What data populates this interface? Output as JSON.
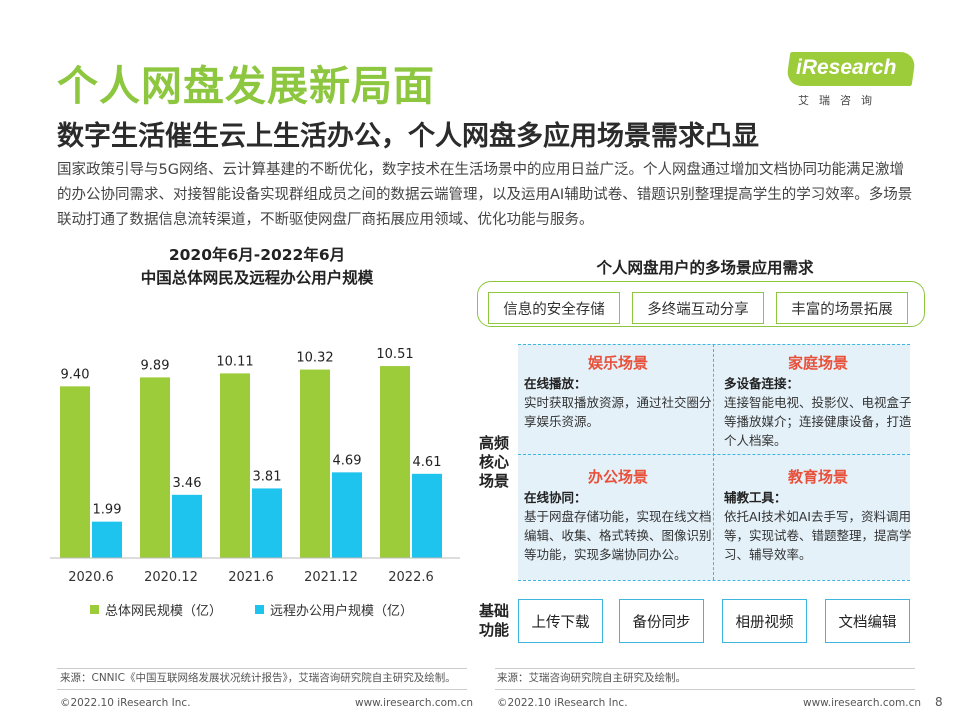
{
  "header": {
    "title": "个人网盘发展新局面",
    "subtitle": "数字生活催生云上生活办公，个人网盘多应用场景需求凸显",
    "logo": {
      "brand": "iResearch",
      "sub": "艾瑞咨询"
    },
    "intro": "国家政策引导与5G网络、云计算基建的不断优化，数字技术在生活场景中的应用日益广泛。个人网盘通过增加文档协同功能满足激增的办公协同需求、对接智能设备实现群组成员之间的数据云端管理，以及运用AI辅助试卷、错题识别整理提高学生的学习效率。多场景联动打通了数据信息流转渠道，不断驱使网盘厂商拓展应用领域、优化功能与服务。"
  },
  "chart_title": {
    "line1": "2020年6月-2022年6月",
    "line2": "中国总体网民及远程办公用户规模"
  },
  "chart_data": {
    "type": "bar",
    "title": "2020年6月-2022年6月 中国总体网民及远程办公用户规模",
    "categories": [
      "2020.6",
      "2020.12",
      "2021.6",
      "2021.12",
      "2022.6"
    ],
    "series": [
      {
        "name": "总体网民规模（亿）",
        "values": [
          9.4,
          9.89,
          10.11,
          10.32,
          10.51
        ],
        "labels": [
          "9.40",
          "9.89",
          "10.11",
          "10.32",
          "10.51"
        ],
        "color": "#9ccc3a"
      },
      {
        "name": "远程办公用户规模（亿）",
        "values": [
          1.99,
          3.46,
          3.81,
          4.69,
          4.61
        ],
        "labels": [
          "1.99",
          "3.46",
          "3.81",
          "4.69",
          "4.61"
        ],
        "color": "#1ec3ee"
      }
    ],
    "ylim": [
      0,
      11.5
    ],
    "grid": false,
    "legend": "bottom"
  },
  "diagram": {
    "title": "个人网盘用户的多场景应用需求",
    "tags": [
      "信息的安全存储",
      "多终端互动分享",
      "丰富的场景拓展"
    ],
    "core_label": "高频核心场景",
    "base_label": "基础功能",
    "scenes": [
      {
        "title": "娱乐场景",
        "sub": "在线播放：",
        "text": "实时获取播放资源，通过社交圈分享娱乐资源。"
      },
      {
        "title": "家庭场景",
        "sub": "多设备连接：",
        "text": "连接智能电视、投影仪、电视盒子等播放媒介；连接健康设备，打造个人档案。"
      },
      {
        "title": "办公场景",
        "sub": "在线协同：",
        "text": "基于网盘存储功能，实现在线文档编辑、收集、格式转换、图像识别等功能，实现多端协同办公。"
      },
      {
        "title": "教育场景",
        "sub": "辅教工具：",
        "text": "依托AI技术如AI去手写，资料调用等，实现试卷、错题整理，提高学习、辅导效率。"
      }
    ],
    "base_functions": [
      "上传下载",
      "备份同步",
      "相册视频",
      "文档编辑"
    ]
  },
  "footer": {
    "source_left": "来源：CNNIC《中国互联网络发展状况统计报告》，艾瑞咨询研究院自主研究及绘制。",
    "source_right": "来源：艾瑞咨询研究院自主研究及绘制。",
    "copyright": "©2022.10 iResearch Inc.",
    "website": "www.iresearch.com.cn",
    "page": "8"
  }
}
